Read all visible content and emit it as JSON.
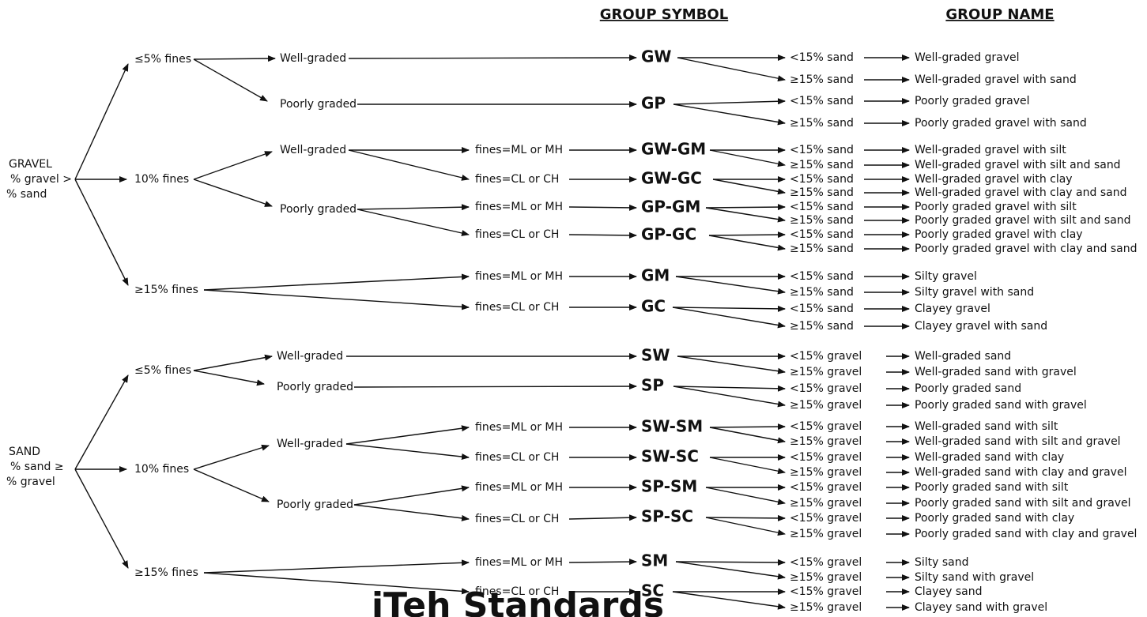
{
  "headers": {
    "group_symbol": "GROUP SYMBOL",
    "group_name": "GROUP NAME"
  },
  "watermark": "iTeh Standards",
  "gravel": {
    "root": [
      "GRAVEL",
      "% gravel >",
      "% sand"
    ],
    "fines": [
      "≤5% fines",
      "10% fines",
      "≥15% fines"
    ],
    "grading": [
      "Well-graded",
      "Poorly graded",
      "Well-graded",
      "Poorly graded"
    ],
    "fines_type": [
      "fines=ML or MH",
      "fines=CL or CH",
      "fines=ML or MH",
      "fines=CL or CH",
      "fines=ML or MH",
      "fines=CL or CH"
    ],
    "symbols": [
      "GW",
      "GP",
      "GW-GM",
      "GW-GC",
      "GP-GM",
      "GP-GC",
      "GM",
      "GC"
    ],
    "qualifiers": [
      "<15% sand",
      "≥15% sand"
    ],
    "names": [
      "Well-graded gravel",
      "Well-graded gravel with sand",
      "Poorly graded gravel",
      "Poorly graded gravel with sand",
      "Well-graded gravel with silt",
      "Well-graded gravel with silt and sand",
      "Well-graded gravel with clay",
      "Well-graded gravel with clay and sand",
      "Poorly graded gravel with silt",
      "Poorly graded gravel with silt and sand",
      "Poorly graded gravel with clay",
      "Poorly graded gravel with clay and sand",
      "Silty gravel",
      "Silty gravel with sand",
      "Clayey gravel",
      "Clayey gravel with sand"
    ]
  },
  "sand": {
    "root": [
      "SAND",
      "% sand ≥",
      "% gravel"
    ],
    "fines": [
      "≤5% fines",
      "10% fines",
      "≥15% fines"
    ],
    "grading": [
      "Well-graded",
      "Poorly graded",
      "Well-graded",
      "Poorly graded"
    ],
    "fines_type": [
      "fines=ML or MH",
      "fines=CL or CH",
      "fines=ML or MH",
      "fines=CL or CH",
      "fines=ML or MH",
      "fines=CL or CH"
    ],
    "symbols": [
      "SW",
      "SP",
      "SW-SM",
      "SW-SC",
      "SP-SM",
      "SP-SC",
      "SM",
      "SC"
    ],
    "qualifiers": [
      "<15% gravel",
      "≥15% gravel"
    ],
    "names": [
      "Well-graded sand",
      "Well-graded sand with gravel",
      "Poorly graded sand",
      "Poorly graded sand with gravel",
      "Well-graded sand with silt",
      "Well-graded sand with silt and gravel",
      "Well-graded sand with clay",
      "Well-graded sand with clay and gravel",
      "Poorly graded sand with silt",
      "Poorly graded sand with silt and gravel",
      "Poorly graded sand with clay",
      "Poorly graded sand with clay and gravel",
      "Silty sand",
      "Silty sand with gravel",
      "Clayey sand",
      "Clayey sand with gravel"
    ]
  }
}
